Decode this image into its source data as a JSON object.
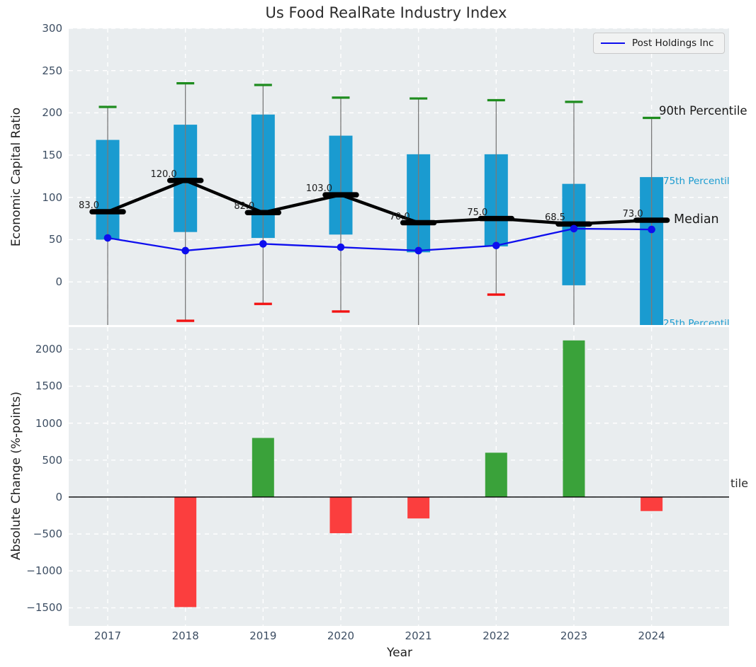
{
  "figure_title": "Us Food RealRate Industry Index",
  "colors": {
    "panel_bg": "#e9edef",
    "grid": "#ffffff",
    "box": "#1a9bd0",
    "p90_cap": "#1e8c1e",
    "p10_cap": "#f21212",
    "median": "#000000",
    "company_line": "#0d0dee",
    "bar_positive": "#3aa23a",
    "bar_negative": "#fb3e3e",
    "zero_line": "#000000",
    "stem": "#7a7a7a",
    "tick_label": "#3d4e63",
    "percentile_label_cyan": "#1a9bd0",
    "text": "#1f1f1f"
  },
  "chart_data": [
    {
      "type": "boxplot",
      "title": "Us Food RealRate Industry Index",
      "ylabel": "Economic Capital Ratio",
      "ylim": [
        -51,
        300
      ],
      "yticks": [
        300,
        250,
        200,
        150,
        100,
        50,
        0
      ],
      "ytick_labels": [
        "300",
        "250",
        "200",
        "150",
        "100",
        "50",
        "0"
      ],
      "grid": true,
      "legend": {
        "label": "Post Holdings Inc",
        "position": "upper right"
      },
      "categories": [
        "2017",
        "2018",
        "2019",
        "2020",
        "2021",
        "2022",
        "2023",
        "2024"
      ],
      "series": [
        {
          "name": "90th Percentile",
          "values": [
            207,
            235,
            233,
            218,
            217,
            215,
            213,
            194
          ]
        },
        {
          "name": "75th Percentile",
          "values": [
            168,
            186,
            198,
            173,
            151,
            151,
            116,
            124
          ]
        },
        {
          "name": "Median",
          "values": [
            83,
            120,
            82,
            103,
            70,
            75,
            68.5,
            73
          ],
          "labels": [
            "83.0",
            "120.0",
            "82.0",
            "103.0",
            "70.0",
            "75.0",
            "68.5",
            "73.0"
          ]
        },
        {
          "name": "25th Percentile",
          "values": [
            50,
            59,
            52,
            56,
            35,
            42,
            -4,
            -52
          ]
        },
        {
          "name": "10th Percentile",
          "values": [
            null,
            -46,
            -26,
            -35,
            null,
            -15,
            null,
            null
          ]
        },
        {
          "name": "Post Holdings Inc",
          "values": [
            52,
            37,
            45,
            41,
            37,
            43,
            63,
            62
          ]
        }
      ],
      "annotations": {
        "p90": "90th Percentile",
        "p75": "75th Percentile",
        "median": "Median",
        "p25": "25th Percentile"
      }
    },
    {
      "type": "bar",
      "ylabel": "Absolute Change (%-points)",
      "xlabel": "Year",
      "ylim": [
        -1745,
        2300
      ],
      "yticks": [
        2000,
        1500,
        1000,
        500,
        0,
        -500,
        -1000,
        -1500
      ],
      "ytick_labels": [
        "2000",
        "1500",
        "1000",
        "500",
        "0",
        "−500",
        "−1000",
        "−1500"
      ],
      "grid": true,
      "categories": [
        "2017",
        "2018",
        "2019",
        "2020",
        "2021",
        "2022",
        "2023",
        "2024"
      ],
      "values": [
        0,
        -1490,
        800,
        -490,
        -290,
        600,
        2120,
        -190
      ],
      "clipped_annotation": "tile"
    }
  ]
}
